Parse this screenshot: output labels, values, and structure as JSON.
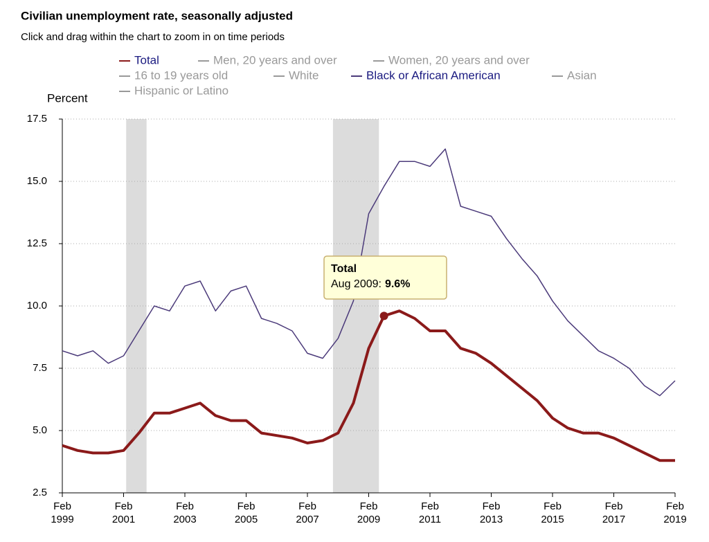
{
  "chart_data": {
    "type": "line",
    "title": "Civilian unemployment rate, seasonally adjusted",
    "subtitle": "Click and drag within the chart to zoom in on time periods",
    "y_label": "Percent",
    "legend": [
      {
        "name": "Total",
        "color": "#8b1a1a",
        "active": true
      },
      {
        "name": "Men, 20 years and over",
        "color": "#999999",
        "active": false
      },
      {
        "name": "Women, 20 years and over",
        "color": "#999999",
        "active": false
      },
      {
        "name": "16 to 19 years old",
        "color": "#999999",
        "active": false
      },
      {
        "name": "White",
        "color": "#999999",
        "active": false
      },
      {
        "name": "Black or African American",
        "color": "#4b3a7a",
        "active": true
      },
      {
        "name": "Asian",
        "color": "#999999",
        "active": false
      },
      {
        "name": "Hispanic or Latino",
        "color": "#999999",
        "active": false
      }
    ],
    "x": [
      1999.083,
      1999.583,
      2000.083,
      2000.583,
      2001.083,
      2001.583,
      2002.083,
      2002.583,
      2003.083,
      2003.583,
      2004.083,
      2004.583,
      2005.083,
      2005.583,
      2006.083,
      2006.583,
      2007.083,
      2007.583,
      2008.083,
      2008.583,
      2009.083,
      2009.583,
      2010.083,
      2010.583,
      2011.083,
      2011.583,
      2012.083,
      2012.583,
      2013.083,
      2013.583,
      2014.083,
      2014.583,
      2015.083,
      2015.583,
      2016.083,
      2016.583,
      2017.083,
      2017.583,
      2018.083,
      2018.583,
      2019.083
    ],
    "series": [
      {
        "name": "Black or African American",
        "color": "#4b3a7a",
        "width": 1.5,
        "values": [
          8.2,
          8.0,
          8.2,
          7.7,
          8.0,
          9.0,
          10.0,
          9.8,
          10.8,
          11.0,
          9.8,
          10.6,
          10.8,
          9.5,
          9.3,
          9.0,
          8.1,
          7.9,
          8.7,
          10.2,
          13.7,
          14.8,
          15.8,
          15.8,
          15.6,
          16.3,
          14.0,
          13.8,
          13.6,
          12.7,
          11.9,
          11.2,
          10.2,
          9.4,
          8.8,
          8.2,
          7.9,
          7.5,
          6.8,
          6.4,
          7.0
        ]
      },
      {
        "name": "Total",
        "color": "#8b1a1a",
        "width": 4,
        "values": [
          4.4,
          4.2,
          4.1,
          4.1,
          4.2,
          4.9,
          5.7,
          5.7,
          5.9,
          6.1,
          5.6,
          5.4,
          5.4,
          4.9,
          4.8,
          4.7,
          4.5,
          4.6,
          4.9,
          6.1,
          8.3,
          9.6,
          9.8,
          9.5,
          9.0,
          9.0,
          8.3,
          8.1,
          7.7,
          7.2,
          6.7,
          6.2,
          5.5,
          5.1,
          4.9,
          4.9,
          4.7,
          4.4,
          4.1,
          3.8,
          3.8
        ]
      }
    ],
    "shaded_periods": [
      [
        2001.167,
        2001.833
      ],
      [
        2007.917,
        2009.417
      ]
    ],
    "xlim": [
      1999.083,
      2019.083
    ],
    "xticks": [
      {
        "value": 1999.083,
        "label": "Feb 1999"
      },
      {
        "value": 2001.083,
        "label": "Feb 2001"
      },
      {
        "value": 2003.083,
        "label": "Feb 2003"
      },
      {
        "value": 2005.083,
        "label": "Feb 2005"
      },
      {
        "value": 2007.083,
        "label": "Feb 2007"
      },
      {
        "value": 2009.083,
        "label": "Feb 2009"
      },
      {
        "value": 2011.083,
        "label": "Feb 2011"
      },
      {
        "value": 2013.083,
        "label": "Feb 2013"
      },
      {
        "value": 2015.083,
        "label": "Feb 2015"
      },
      {
        "value": 2017.083,
        "label": "Feb 2017"
      },
      {
        "value": 2019.083,
        "label": "Feb 2019"
      }
    ],
    "ylim": [
      2.5,
      17.5
    ],
    "yticks": [
      2.5,
      {
        "value": 5,
        "label": "5.0"
      },
      7.5,
      {
        "value": 10,
        "label": "10.0"
      },
      12.5,
      {
        "value": 15,
        "label": "15.0"
      },
      17.5
    ],
    "grid": true,
    "annotation": {
      "series": "Total",
      "label": "Aug 2009:",
      "x": 2009.583,
      "value": 9.6,
      "value_label": "9.6%",
      "color": "#8b1a1a"
    }
  }
}
